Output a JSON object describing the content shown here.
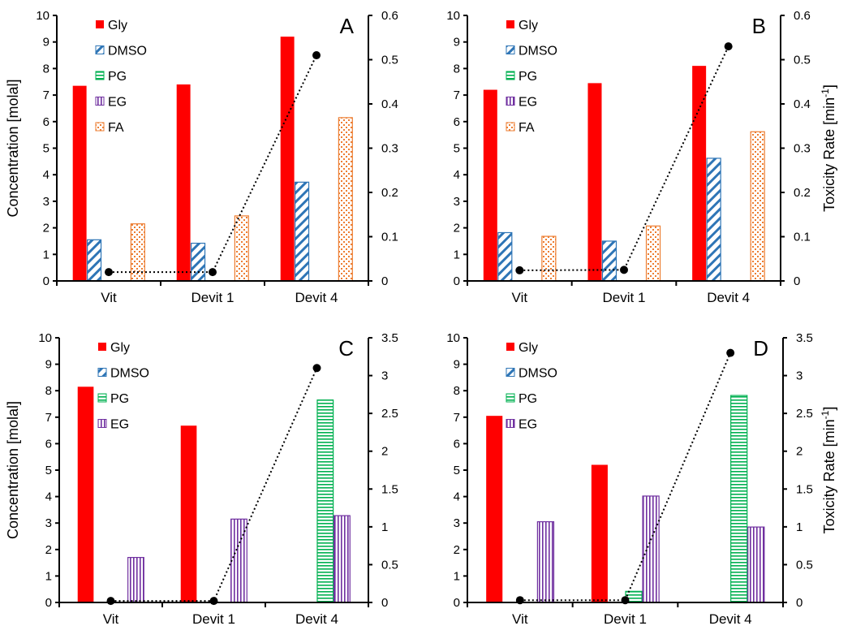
{
  "chart_data": [
    {
      "type": "bar",
      "panel_label": "A",
      "categories": [
        "Vit",
        "Devit 1",
        "Devit 4"
      ],
      "ylabel": "Concentration [molal]",
      "y2label": "",
      "ylim": [
        0,
        10
      ],
      "y2lim": [
        0,
        0.6
      ],
      "yticks": [
        "0",
        "1",
        "2",
        "3",
        "4",
        "5",
        "6",
        "7",
        "8",
        "9",
        "10"
      ],
      "y2ticks": [
        "0",
        "0.1",
        "0.2",
        "0.3",
        "0.4",
        "0.5",
        "0.6"
      ],
      "legend": [
        "Gly",
        "DMSO",
        "PG",
        "EG",
        "FA"
      ],
      "legend_position": "top-left",
      "series": [
        {
          "name": "Gly",
          "values": [
            7.35,
            7.4,
            9.2
          ]
        },
        {
          "name": "DMSO",
          "values": [
            1.55,
            1.42,
            3.72
          ]
        },
        {
          "name": "PG",
          "values": [
            0,
            0,
            0
          ]
        },
        {
          "name": "EG",
          "values": [
            0,
            0,
            0
          ]
        },
        {
          "name": "FA",
          "values": [
            2.15,
            2.45,
            6.15
          ]
        }
      ],
      "line": {
        "name": "Toxicity Rate",
        "axis": "right",
        "values": [
          0.02,
          0.02,
          0.51
        ]
      }
    },
    {
      "type": "bar",
      "panel_label": "B",
      "categories": [
        "Vit",
        "Devit 1",
        "Devit 4"
      ],
      "ylabel": "",
      "y2label": "Toxicity Rate [min-1]",
      "ylim": [
        0,
        10
      ],
      "y2lim": [
        0,
        0.6
      ],
      "yticks": [
        "0",
        "1",
        "2",
        "3",
        "4",
        "5",
        "6",
        "7",
        "8",
        "9",
        "10"
      ],
      "y2ticks": [
        "0",
        "0.1",
        "0.2",
        "0.3",
        "0.4",
        "0.5",
        "0.6"
      ],
      "legend": [
        "Gly",
        "DMSO",
        "PG",
        "EG",
        "FA"
      ],
      "legend_position": "top-left",
      "series": [
        {
          "name": "Gly",
          "values": [
            7.2,
            7.45,
            8.1
          ]
        },
        {
          "name": "DMSO",
          "values": [
            1.82,
            1.5,
            4.62
          ]
        },
        {
          "name": "PG",
          "values": [
            0,
            0,
            0
          ]
        },
        {
          "name": "EG",
          "values": [
            0,
            0,
            0
          ]
        },
        {
          "name": "FA",
          "values": [
            1.68,
            2.07,
            5.62
          ]
        }
      ],
      "line": {
        "name": "Toxicity Rate",
        "axis": "right",
        "values": [
          0.024,
          0.025,
          0.53
        ]
      }
    },
    {
      "type": "bar",
      "panel_label": "C",
      "categories": [
        "Vit",
        "Devit 1",
        "Devit 4"
      ],
      "ylabel": "Concentration [molal]",
      "y2label": "",
      "ylim": [
        0,
        10
      ],
      "y2lim": [
        0,
        3.5
      ],
      "yticks": [
        "0",
        "1",
        "2",
        "3",
        "4",
        "5",
        "6",
        "7",
        "8",
        "9",
        "10"
      ],
      "y2ticks": [
        "0",
        "0.5",
        "1",
        "1.5",
        "2",
        "2.5",
        "3",
        "3.5"
      ],
      "legend": [
        "Gly",
        "DMSO",
        "PG",
        "EG"
      ],
      "legend_position": "top-left",
      "series": [
        {
          "name": "Gly",
          "values": [
            8.15,
            6.68,
            0
          ]
        },
        {
          "name": "DMSO",
          "values": [
            0,
            0,
            0
          ]
        },
        {
          "name": "PG",
          "values": [
            0,
            0,
            7.65
          ]
        },
        {
          "name": "EG",
          "values": [
            1.7,
            3.15,
            3.28
          ]
        }
      ],
      "line": {
        "name": "Toxicity Rate",
        "axis": "right",
        "values": [
          0.02,
          0.02,
          3.1
        ]
      }
    },
    {
      "type": "bar",
      "panel_label": "D",
      "categories": [
        "Vit",
        "Devit 1",
        "Devit 4"
      ],
      "ylabel": "",
      "y2label": "Toxicity Rate [min-1]",
      "ylim": [
        0,
        10
      ],
      "y2lim": [
        0,
        3.5
      ],
      "yticks": [
        "0",
        "1",
        "2",
        "3",
        "4",
        "5",
        "6",
        "7",
        "8",
        "9",
        "10"
      ],
      "y2ticks": [
        "0",
        "0.5",
        "1",
        "1.5",
        "2",
        "2.5",
        "3",
        "3.5"
      ],
      "legend": [
        "Gly",
        "DMSO",
        "PG",
        "EG"
      ],
      "legend_position": "top-left",
      "series": [
        {
          "name": "Gly",
          "values": [
            7.05,
            5.2,
            0
          ]
        },
        {
          "name": "DMSO",
          "values": [
            0,
            0,
            0
          ]
        },
        {
          "name": "PG",
          "values": [
            0,
            0.42,
            7.82
          ]
        },
        {
          "name": "EG",
          "values": [
            3.05,
            4.02,
            2.85
          ]
        }
      ],
      "line": {
        "name": "Toxicity Rate",
        "axis": "right",
        "values": [
          0.03,
          0.03,
          3.3
        ]
      }
    }
  ],
  "colors": {
    "Gly": "#ff0000",
    "DMSO": "#2e75b6",
    "PG": "#00b050",
    "EG": "#7030a0",
    "FA": "#ed7d31",
    "line": "#000000"
  }
}
